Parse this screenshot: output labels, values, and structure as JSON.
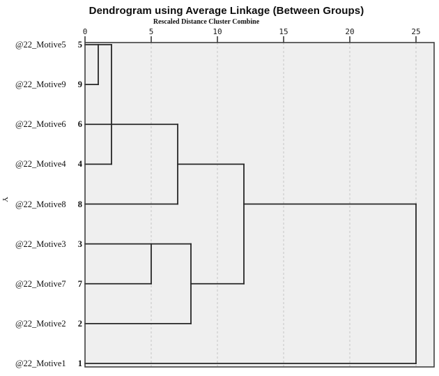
{
  "title": "Dendrogram using Average Linkage (Between Groups)",
  "subtitle": "Rescaled Distance Cluster Combine",
  "y_axis_label": "Y",
  "axis_ticks": [
    "0",
    "5",
    "10",
    "15",
    "20",
    "25"
  ],
  "cases": [
    {
      "label": "@22_Motive5",
      "num": "5"
    },
    {
      "label": "@22_Motive9",
      "num": "9"
    },
    {
      "label": "@22_Motive6",
      "num": "6"
    },
    {
      "label": "@22_Motive4",
      "num": "4"
    },
    {
      "label": "@22_Motive8",
      "num": "8"
    },
    {
      "label": "@22_Motive3",
      "num": "3"
    },
    {
      "label": "@22_Motive7",
      "num": "7"
    },
    {
      "label": "@22_Motive2",
      "num": "2"
    },
    {
      "label": "@22_Motive1",
      "num": "1"
    }
  ],
  "colors": {
    "plot_bg": "#efefef",
    "frame": "#3f3f3f",
    "line": "#262626",
    "grid": "#c9c9c9",
    "tick": "#2b2b2b",
    "text": "#111111"
  },
  "chart_data": {
    "type": "dendrogram",
    "orientation": "horizontal",
    "title": "Dendrogram using Average Linkage (Between Groups)",
    "xlabel": "Rescaled Distance Cluster Combine",
    "xlim": [
      0,
      25
    ],
    "xticks": [
      0,
      5,
      10,
      15,
      20,
      25
    ],
    "grid": "vertical dashed gridlines at each tick",
    "legend": "none",
    "leaves_top_to_bottom": [
      "@22_Motive5",
      "@22_Motive9",
      "@22_Motive6",
      "@22_Motive4",
      "@22_Motive8",
      "@22_Motive3",
      "@22_Motive7",
      "@22_Motive2",
      "@22_Motive1"
    ],
    "case_numbers": [
      5,
      9,
      6,
      4,
      8,
      3,
      7,
      2,
      1
    ],
    "merges": [
      {
        "join": [
          "5",
          "9"
        ],
        "rescaled_distance": 1
      },
      {
        "join": [
          "5+9",
          "4"
        ],
        "rescaled_distance": 2
      },
      {
        "join": [
          "3",
          "7"
        ],
        "rescaled_distance": 5
      },
      {
        "join": [
          "6",
          "8"
        ],
        "rescaled_distance": 7
      },
      {
        "join": [
          "3+7",
          "2"
        ],
        "rescaled_distance": 8
      },
      {
        "join": [
          "6+8",
          "3+7+2"
        ],
        "rescaled_distance": 12
      },
      {
        "join": [
          "all-others",
          "1"
        ],
        "rescaled_distance": 25
      }
    ],
    "segments": {
      "comment_units": "horizontal:[x1,x2,rowIndex] vertical:[x,rowIndex1,rowIndex2]; x in rescaled-distance units, rowIndex 0=top leaf",
      "horizontal": [
        [
          0,
          2,
          0
        ],
        [
          0,
          1,
          1
        ],
        [
          0,
          7,
          2
        ],
        [
          0,
          2,
          3
        ],
        [
          0,
          7,
          4
        ],
        [
          0,
          8,
          5
        ],
        [
          0,
          5,
          6
        ],
        [
          0,
          8,
          7
        ],
        [
          0,
          25,
          8
        ],
        [
          7,
          12,
          3
        ],
        [
          8,
          12,
          6
        ],
        [
          12,
          25,
          4
        ]
      ],
      "vertical": [
        [
          1,
          0,
          1
        ],
        [
          2,
          0,
          3
        ],
        [
          7,
          2,
          4
        ],
        [
          5,
          5,
          6
        ],
        [
          8,
          5,
          7
        ],
        [
          12,
          3,
          6
        ],
        [
          25,
          4,
          8
        ]
      ]
    }
  }
}
